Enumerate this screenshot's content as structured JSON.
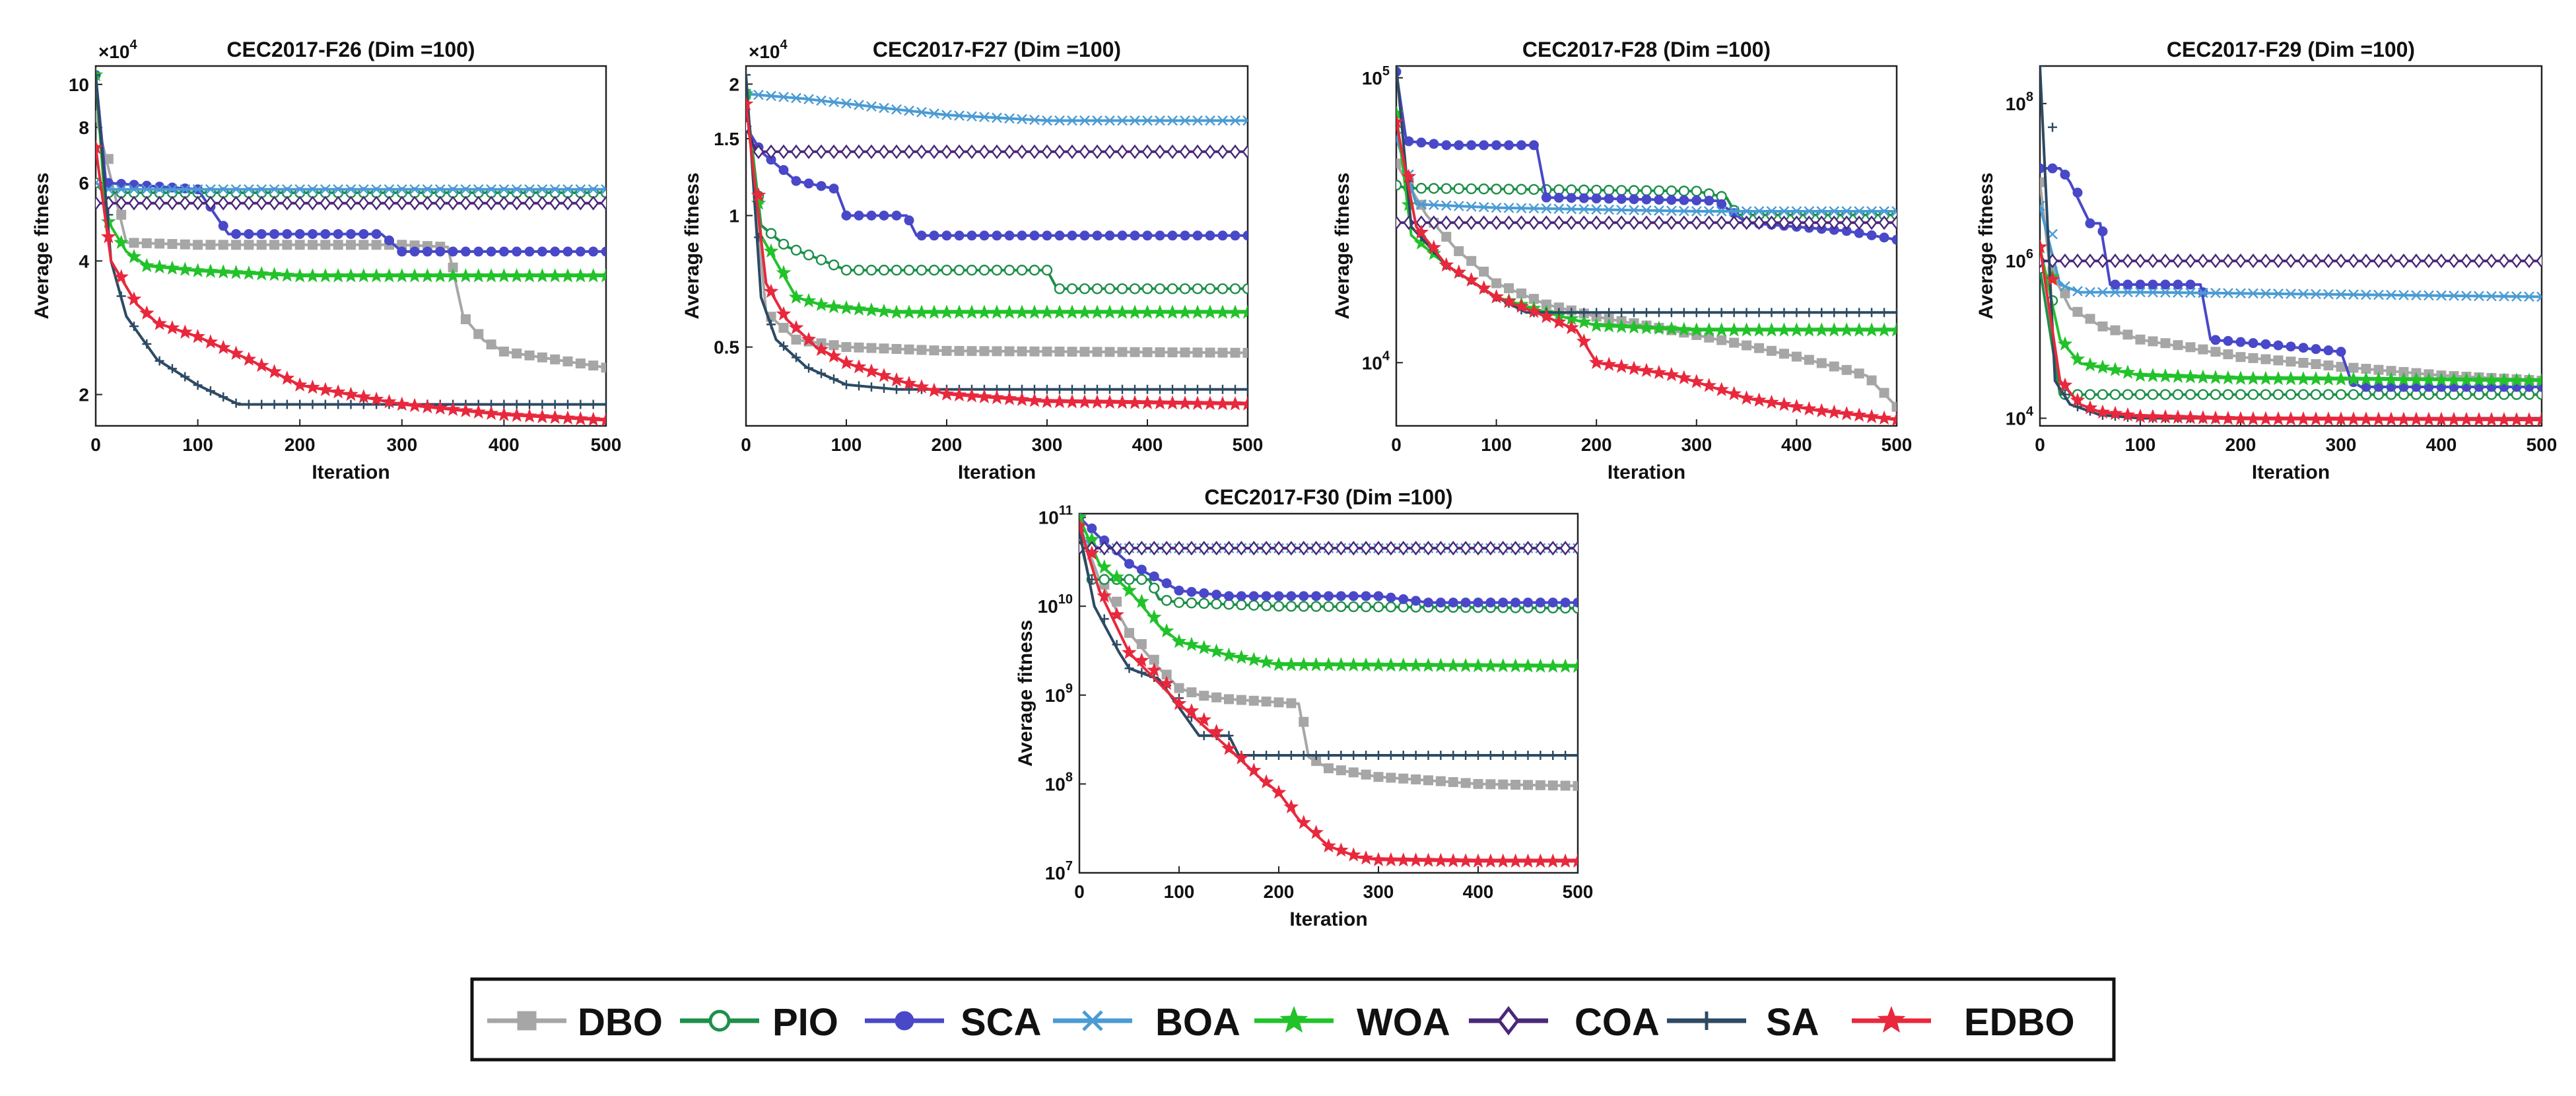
{
  "legend": {
    "entries": [
      {
        "name": "DBO",
        "color": "#a6a6a6",
        "marker": "square"
      },
      {
        "name": "PIO",
        "color": "#1e8f4a",
        "marker": "circle"
      },
      {
        "name": "SCA",
        "color": "#4848c8",
        "marker": "dot"
      },
      {
        "name": "BOA",
        "color": "#4a9bd4",
        "marker": "x"
      },
      {
        "name": "WOA",
        "color": "#22c22a",
        "marker": "star"
      },
      {
        "name": "COA",
        "color": "#4a2878",
        "marker": "diamond"
      },
      {
        "name": "SA",
        "color": "#2d4a63",
        "marker": "plus"
      },
      {
        "name": "EDBO",
        "color": "#e8283c",
        "marker": "star"
      }
    ]
  },
  "chart_data": [
    {
      "type": "line",
      "title": "CEC2017-F26 (Dim =100)",
      "xlabel": "Iteration",
      "ylabel": "Average fitness",
      "xlim": [
        0,
        500
      ],
      "xticks": [
        0,
        100,
        200,
        300,
        400,
        500
      ],
      "yscale": "log",
      "ylim": [
        17000,
        110000
      ],
      "multiplier": "×10^4",
      "yticks": [
        20000,
        40000,
        60000,
        80000,
        100000
      ],
      "yticklabels": [
        "2",
        "4",
        "6",
        "8",
        "10"
      ],
      "series": [
        {
          "name": "DBO",
          "x": [
            0,
            30,
            100,
            200,
            300,
            345,
            360,
            380,
            400,
            500
          ],
          "y": [
            85000,
            44000,
            43500,
            43500,
            43500,
            43000,
            30000,
            26500,
            25000,
            23000
          ]
        },
        {
          "name": "PIO",
          "x": [
            0,
            5,
            10,
            500
          ],
          "y": [
            60000,
            58000,
            57000,
            57000
          ]
        },
        {
          "name": "SCA",
          "x": [
            0,
            10,
            100,
            130,
            200,
            280,
            300,
            500
          ],
          "y": [
            105000,
            60000,
            58000,
            46000,
            46000,
            46000,
            42000,
            42000
          ]
        },
        {
          "name": "BOA",
          "x": [
            0,
            10,
            500
          ],
          "y": [
            60000,
            58000,
            58000
          ]
        },
        {
          "name": "WOA",
          "x": [
            0,
            10,
            30,
            50,
            100,
            200,
            500
          ],
          "y": [
            105000,
            50000,
            42000,
            39000,
            38000,
            37000,
            37000
          ]
        },
        {
          "name": "COA",
          "x": [
            0,
            10,
            500
          ],
          "y": [
            54000,
            54000,
            54000
          ]
        },
        {
          "name": "SA",
          "x": [
            0,
            15,
            30,
            60,
            100,
            140,
            200,
            500
          ],
          "y": [
            105000,
            40000,
            30000,
            24000,
            21000,
            19000,
            19000,
            19000
          ]
        },
        {
          "name": "EDBO",
          "x": [
            0,
            15,
            40,
            60,
            100,
            150,
            200,
            300,
            400,
            500
          ],
          "y": [
            72000,
            40000,
            32000,
            29000,
            27000,
            24000,
            21000,
            19000,
            18000,
            17500
          ]
        }
      ]
    },
    {
      "type": "line",
      "title": "CEC2017-F27 (Dim =100)",
      "xlabel": "Iteration",
      "ylabel": "Average fitness",
      "xlim": [
        0,
        500
      ],
      "xticks": [
        0,
        100,
        200,
        300,
        400,
        500
      ],
      "yscale": "log",
      "ylim": [
        3300,
        22000
      ],
      "multiplier": "×10^4",
      "yticks": [
        5000,
        10000,
        15000,
        20000
      ],
      "yticklabels": [
        "0.5",
        "1",
        "1.5",
        "2"
      ],
      "series": [
        {
          "name": "DBO",
          "x": [
            0,
            20,
            50,
            100,
            200,
            500
          ],
          "y": [
            19000,
            6000,
            5200,
            5000,
            4900,
            4850
          ]
        },
        {
          "name": "PIO",
          "x": [
            0,
            15,
            40,
            70,
            100,
            300,
            310,
            500
          ],
          "y": [
            19000,
            9500,
            8500,
            8000,
            7500,
            7500,
            6800,
            6800
          ]
        },
        {
          "name": "SCA",
          "x": [
            0,
            15,
            50,
            90,
            100,
            160,
            170,
            500
          ],
          "y": [
            16000,
            14000,
            12000,
            11500,
            10000,
            10000,
            9000,
            9000
          ]
        },
        {
          "name": "BOA",
          "x": [
            0,
            60,
            150,
            200,
            300,
            500
          ],
          "y": [
            19000,
            18500,
            17500,
            17000,
            16500,
            16500
          ]
        },
        {
          "name": "WOA",
          "x": [
            0,
            15,
            50,
            80,
            150,
            500
          ],
          "y": [
            19000,
            9000,
            6500,
            6200,
            6000,
            6000
          ]
        },
        {
          "name": "COA",
          "x": [
            0,
            10,
            500
          ],
          "y": [
            16000,
            14000,
            14000
          ]
        },
        {
          "name": "SA",
          "x": [
            0,
            15,
            30,
            60,
            100,
            150,
            200,
            500
          ],
          "y": [
            21000,
            6500,
            5200,
            4500,
            4100,
            4000,
            4000,
            4000
          ]
        },
        {
          "name": "EDBO",
          "x": [
            0,
            20,
            40,
            70,
            100,
            150,
            200,
            300,
            500
          ],
          "y": [
            18000,
            7000,
            5800,
            5000,
            4600,
            4200,
            3900,
            3750,
            3700
          ]
        }
      ]
    },
    {
      "type": "line",
      "title": "CEC2017-F28 (Dim =100)",
      "xlabel": "Iteration",
      "ylabel": "Average fitness",
      "xlim": [
        0,
        500
      ],
      "xticks": [
        0,
        100,
        200,
        300,
        400,
        500
      ],
      "yscale": "log",
      "ylim": [
        6000,
        110000
      ],
      "yticks": [
        10000,
        100000
      ],
      "yticklabels": [
        "10^4",
        "10^5"
      ],
      "series": [
        {
          "name": "DBO",
          "x": [
            0,
            30,
            60,
            100,
            150,
            200,
            300,
            400,
            470,
            500
          ],
          "y": [
            50000,
            33000,
            25000,
            19000,
            16000,
            14500,
            12500,
            10500,
            9000,
            7000
          ]
        },
        {
          "name": "PIO",
          "x": [
            0,
            10,
            300,
            330,
            340,
            500
          ],
          "y": [
            42000,
            41000,
            40000,
            38000,
            33000,
            33000
          ]
        },
        {
          "name": "SCA",
          "x": [
            0,
            10,
            50,
            140,
            150,
            320,
            350,
            450,
            500
          ],
          "y": [
            105000,
            60000,
            58000,
            58000,
            38000,
            37000,
            31000,
            29000,
            27000
          ]
        },
        {
          "name": "BOA",
          "x": [
            0,
            20,
            100,
            300,
            500
          ],
          "y": [
            62000,
            36000,
            35000,
            34000,
            34000
          ]
        },
        {
          "name": "WOA",
          "x": [
            0,
            15,
            50,
            100,
            150,
            200,
            300,
            500
          ],
          "y": [
            75000,
            28000,
            22000,
            17000,
            15000,
            13500,
            13000,
            13000
          ]
        },
        {
          "name": "COA",
          "x": [
            0,
            10,
            500
          ],
          "y": [
            31000,
            31000,
            31000
          ]
        },
        {
          "name": "SA",
          "x": [
            0,
            15,
            50,
            100,
            130,
            500
          ],
          "y": [
            110000,
            30000,
            22000,
            17000,
            15000,
            15000
          ]
        },
        {
          "name": "EDBO",
          "x": [
            0,
            20,
            50,
            100,
            150,
            180,
            200,
            280,
            350,
            420,
            500
          ],
          "y": [
            70000,
            30000,
            22000,
            17000,
            14500,
            13000,
            10000,
            9000,
            7500,
            6800,
            6300
          ]
        }
      ]
    },
    {
      "type": "line",
      "title": "CEC2017-F29 (Dim =100)",
      "xlabel": "Iteration",
      "ylabel": "Average fitness",
      "xlim": [
        0,
        500
      ],
      "xticks": [
        0,
        100,
        200,
        300,
        400,
        500
      ],
      "yscale": "log",
      "ylim": [
        8000,
        300000000
      ],
      "yticks": [
        10000,
        1000000,
        100000000
      ],
      "yticklabels": [
        "10^4",
        "10^6",
        "10^8"
      ],
      "series": [
        {
          "name": "DBO",
          "x": [
            0,
            10,
            30,
            60,
            100,
            200,
            300,
            400,
            500
          ],
          "y": [
            10000000,
            800000,
            250000,
            150000,
            100000,
            60000,
            45000,
            35000,
            30000
          ]
        },
        {
          "name": "PIO",
          "x": [
            0,
            20,
            40,
            500
          ],
          "y": [
            800000,
            20000,
            20000,
            20000
          ]
        },
        {
          "name": "SCA",
          "x": [
            0,
            20,
            30,
            50,
            60,
            70,
            100,
            160,
            170,
            300,
            310,
            320,
            500
          ],
          "y": [
            15000000,
            15000000,
            10000000,
            3000000,
            3000000,
            500000,
            500000,
            500000,
            100000,
            70000,
            30000,
            25000,
            25000
          ]
        },
        {
          "name": "BOA",
          "x": [
            0,
            20,
            40,
            100,
            500
          ],
          "y": [
            5000000,
            500000,
            400000,
            400000,
            350000
          ]
        },
        {
          "name": "WOA",
          "x": [
            0,
            20,
            40,
            100,
            200,
            500
          ],
          "y": [
            1500000,
            100000,
            50000,
            35000,
            32000,
            30000
          ]
        },
        {
          "name": "COA",
          "x": [
            0,
            10,
            500
          ],
          "y": [
            1000000,
            1000000,
            1000000
          ]
        },
        {
          "name": "SA",
          "x": [
            0,
            15,
            30,
            60,
            100,
            500
          ],
          "y": [
            300000000,
            30000,
            15000,
            11000,
            10000,
            10000
          ]
        },
        {
          "name": "EDBO",
          "x": [
            0,
            20,
            40,
            60,
            100,
            200,
            500
          ],
          "y": [
            1500000,
            30000,
            15000,
            12000,
            10500,
            9800,
            9500
          ]
        }
      ]
    },
    {
      "type": "line",
      "title": "CEC2017-F30 (Dim =100)",
      "xlabel": "Iteration",
      "ylabel": "Average fitness",
      "xlim": [
        0,
        500
      ],
      "xticks": [
        0,
        100,
        200,
        300,
        400,
        500
      ],
      "yscale": "log",
      "ylim": [
        10000000,
        110000000000
      ],
      "yticks": [
        10000000,
        100000000,
        1000000000,
        10000000000,
        100000000000
      ],
      "yticklabels": [
        "10^7",
        "10^8",
        "10^9",
        "10^10",
        "10^11"
      ],
      "series": [
        {
          "name": "DBO",
          "x": [
            0,
            20,
            50,
            80,
            100,
            120,
            150,
            220,
            230,
            250,
            300,
            400,
            500
          ],
          "y": [
            80000000000,
            20000000000,
            5000000000,
            2000000000,
            1200000000,
            1000000000,
            900000000,
            800000000,
            200000000,
            150000000,
            120000000,
            100000000,
            95000000
          ]
        },
        {
          "name": "PIO",
          "x": [
            0,
            10,
            70,
            80,
            100,
            200,
            500
          ],
          "y": [
            60000000000,
            20000000000,
            20000000000,
            12000000000,
            11000000000,
            10000000000,
            9500000000
          ]
        },
        {
          "name": "SCA",
          "x": [
            0,
            20,
            50,
            80,
            100,
            150,
            250,
            300,
            350,
            500
          ],
          "y": [
            100000000000,
            60000000000,
            30000000000,
            20000000000,
            15000000000,
            13000000000,
            13000000000,
            13000000000,
            11000000000,
            11000000000
          ]
        },
        {
          "name": "BOA",
          "x": [
            0,
            20,
            500
          ],
          "y": [
            60000000000,
            45000000000,
            45000000000
          ]
        },
        {
          "name": "WOA",
          "x": [
            0,
            20,
            50,
            80,
            100,
            150,
            200,
            500
          ],
          "y": [
            100000000000,
            30000000000,
            15000000000,
            6000000000,
            4000000000,
            2800000000,
            2200000000,
            2100000000
          ]
        },
        {
          "name": "COA",
          "x": [
            0,
            10,
            500
          ],
          "y": [
            45000000000,
            45000000000,
            45000000000
          ]
        },
        {
          "name": "SA",
          "x": [
            0,
            15,
            40,
            50,
            80,
            120,
            150,
            160,
            500
          ],
          "y": [
            70000000000,
            10000000000,
            3000000000,
            2000000000,
            1500000000,
            350000000,
            350000000,
            210000000,
            210000000
          ]
        },
        {
          "name": "EDBO",
          "x": [
            0,
            20,
            50,
            100,
            150,
            180,
            200,
            220,
            250,
            280,
            300,
            400,
            500
          ],
          "y": [
            80000000000,
            15000000000,
            3000000000,
            800000000,
            250000000,
            120000000,
            80000000,
            40000000,
            20000000,
            15000000,
            14000000,
            13500000,
            13500000
          ]
        }
      ]
    }
  ]
}
